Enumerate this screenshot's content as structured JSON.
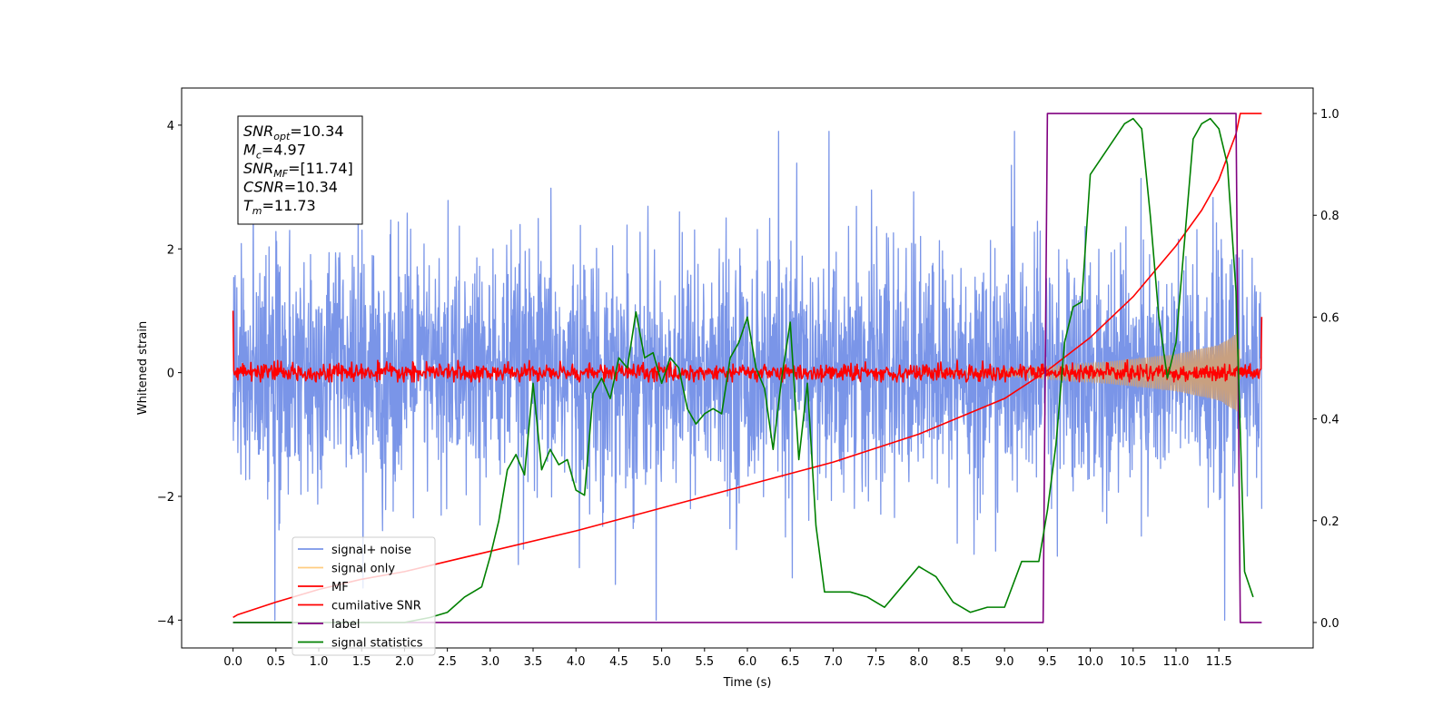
{
  "chart_data": {
    "type": "line",
    "xlabel": "Time (s)",
    "ylabel": "Whitened strain",
    "xlim": [
      -0.6,
      12.6
    ],
    "ylim": [
      -4.45,
      4.6
    ],
    "ylim_right": [
      -0.05,
      1.05
    ],
    "x_ticks": [
      0.0,
      0.5,
      1.0,
      1.5,
      2.0,
      2.5,
      3.0,
      3.5,
      4.0,
      4.5,
      5.0,
      5.5,
      6.0,
      6.5,
      7.0,
      7.5,
      8.0,
      8.5,
      9.0,
      9.5,
      10.0,
      10.5,
      11.0,
      11.5
    ],
    "x_tick_labels": [
      "0.0",
      "0.5",
      "1.0",
      "1.5",
      "2.0",
      "2.5",
      "3.0",
      "3.5",
      "4.0",
      "4.5",
      "5.0",
      "5.5",
      "6.0",
      "6.5",
      "7.0",
      "7.5",
      "8.0",
      "8.5",
      "9.0",
      "9.5",
      "10.0",
      "10.5",
      "11.0",
      "11.5"
    ],
    "y_ticks": [
      -4,
      -2,
      0,
      2,
      4
    ],
    "y_tick_labels": [
      "−4",
      "−2",
      "0",
      "2",
      "4"
    ],
    "y2_ticks": [
      0.0,
      0.2,
      0.4,
      0.6,
      0.8,
      1.0
    ],
    "y2_tick_labels": [
      "0.0",
      "0.2",
      "0.4",
      "0.6",
      "0.8",
      "1.0"
    ],
    "annotation_lines": [
      {
        "sym": "SNR",
        "sub": "opt",
        "val": "=10.34"
      },
      {
        "sym": "M",
        "sub": "c",
        "val": "=4.97"
      },
      {
        "sym": "SNR",
        "sub": "MF",
        "val": "=[11.74]"
      },
      {
        "sym": "CSNR",
        "sub": "",
        "val": "=10.34"
      },
      {
        "sym": "T",
        "sub": "m",
        "val": "=11.73"
      }
    ],
    "legend": {
      "placement": "lower-left",
      "entries": [
        {
          "label": "signal+ noise",
          "color": "#7a95e8"
        },
        {
          "label": "signal only",
          "color": "#ffcc80"
        },
        {
          "label": "MF",
          "color": "#ff0000"
        },
        {
          "label": "cumilative SNR",
          "color": "#ff0000"
        },
        {
          "label": "label",
          "color": "#800080"
        },
        {
          "label": "signal statistics",
          "color": "#008000"
        }
      ]
    },
    "series": [
      {
        "name": "signal+ noise",
        "axis": "left",
        "color": "#7a95e8",
        "kind": "noise",
        "x_range": [
          0,
          12
        ],
        "std": 0.95,
        "min": -4.0,
        "max": 3.9
      },
      {
        "name": "signal only",
        "axis": "left",
        "color": "#c8a080",
        "kind": "chirp",
        "x_start": 8.0,
        "x_end": 11.75,
        "envelope": [
          [
            8.0,
            0.02
          ],
          [
            9.0,
            0.06
          ],
          [
            10.0,
            0.15
          ],
          [
            10.5,
            0.22
          ],
          [
            11.0,
            0.3
          ],
          [
            11.5,
            0.45
          ],
          [
            11.73,
            0.65
          ],
          [
            11.75,
            0.0
          ]
        ]
      },
      {
        "name": "MF",
        "axis": "left",
        "color": "#ff0000",
        "kind": "noise",
        "x_range": [
          0,
          12
        ],
        "std": 0.07,
        "min": -0.15,
        "max": 0.32,
        "start_value": 1.0,
        "end_value": 0.9
      },
      {
        "name": "cumilative SNR",
        "axis": "right",
        "x": [
          0.0,
          0.05,
          0.5,
          1.0,
          1.5,
          2.0,
          3.0,
          4.0,
          5.0,
          6.0,
          7.0,
          8.0,
          8.5,
          9.0,
          9.5,
          10.0,
          10.5,
          11.0,
          11.3,
          11.5,
          11.7,
          11.75,
          12.0
        ],
        "y": [
          0.01,
          0.015,
          0.04,
          0.065,
          0.085,
          0.1,
          0.14,
          0.18,
          0.225,
          0.27,
          0.315,
          0.37,
          0.405,
          0.44,
          0.495,
          0.56,
          0.64,
          0.74,
          0.81,
          0.87,
          0.96,
          1.0,
          1.0
        ]
      },
      {
        "name": "label",
        "axis": "right",
        "x": [
          0.0,
          9.45,
          9.5,
          11.7,
          11.75,
          12.0
        ],
        "y": [
          0.0,
          0.0,
          1.0,
          1.0,
          0.0,
          0.0
        ]
      },
      {
        "name": "signal statistics",
        "axis": "right",
        "x": [
          0.0,
          0.5,
          1.0,
          1.5,
          2.0,
          2.3,
          2.5,
          2.7,
          2.8,
          2.9,
          3.0,
          3.1,
          3.2,
          3.3,
          3.4,
          3.5,
          3.6,
          3.7,
          3.8,
          3.9,
          4.0,
          4.1,
          4.2,
          4.3,
          4.4,
          4.5,
          4.6,
          4.7,
          4.8,
          4.9,
          5.0,
          5.1,
          5.2,
          5.3,
          5.4,
          5.5,
          5.6,
          5.7,
          5.8,
          5.9,
          6.0,
          6.1,
          6.2,
          6.3,
          6.4,
          6.5,
          6.6,
          6.7,
          6.8,
          6.9,
          7.0,
          7.2,
          7.4,
          7.6,
          7.8,
          8.0,
          8.2,
          8.4,
          8.6,
          8.8,
          9.0,
          9.2,
          9.4,
          9.5,
          9.6,
          9.7,
          9.8,
          9.9,
          10.0,
          10.2,
          10.4,
          10.5,
          10.6,
          10.7,
          10.8,
          10.9,
          11.0,
          11.1,
          11.2,
          11.3,
          11.4,
          11.5,
          11.6,
          11.7,
          11.8,
          11.9
        ],
        "y": [
          0.0,
          0.0,
          0.0,
          0.0,
          0.0,
          0.01,
          0.02,
          0.05,
          0.06,
          0.07,
          0.13,
          0.2,
          0.3,
          0.33,
          0.29,
          0.47,
          0.3,
          0.34,
          0.31,
          0.32,
          0.26,
          0.25,
          0.45,
          0.48,
          0.44,
          0.52,
          0.5,
          0.61,
          0.52,
          0.53,
          0.47,
          0.52,
          0.5,
          0.42,
          0.39,
          0.41,
          0.42,
          0.41,
          0.52,
          0.55,
          0.6,
          0.5,
          0.46,
          0.34,
          0.48,
          0.59,
          0.32,
          0.47,
          0.19,
          0.06,
          0.06,
          0.06,
          0.05,
          0.03,
          0.07,
          0.11,
          0.09,
          0.04,
          0.02,
          0.03,
          0.03,
          0.12,
          0.12,
          0.22,
          0.35,
          0.55,
          0.62,
          0.63,
          0.88,
          0.93,
          0.98,
          0.99,
          0.97,
          0.8,
          0.6,
          0.48,
          0.55,
          0.75,
          0.95,
          0.98,
          0.99,
          0.97,
          0.9,
          0.65,
          0.1,
          0.05
        ]
      }
    ]
  }
}
